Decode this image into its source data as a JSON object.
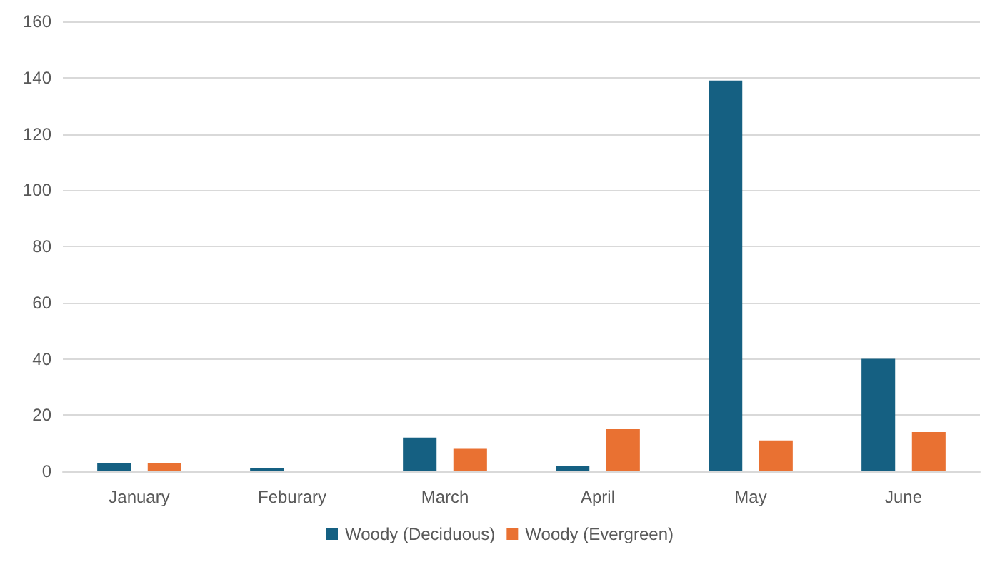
{
  "chart_data": {
    "type": "bar",
    "categories": [
      "January",
      "Feburary",
      "March",
      "April",
      "May",
      "June"
    ],
    "series": [
      {
        "name": "Woody (Deciduous)",
        "color": "#156082",
        "values": [
          3,
          1,
          12,
          2,
          139,
          40
        ]
      },
      {
        "name": "Woody (Evergreen)",
        "color": "#e97132",
        "values": [
          3,
          0,
          8,
          15,
          11,
          14
        ]
      }
    ],
    "ylim": [
      0,
      160
    ],
    "yticks": [
      0,
      20,
      40,
      60,
      80,
      100,
      120,
      140,
      160
    ],
    "grid": "y",
    "legend": "bottom"
  }
}
